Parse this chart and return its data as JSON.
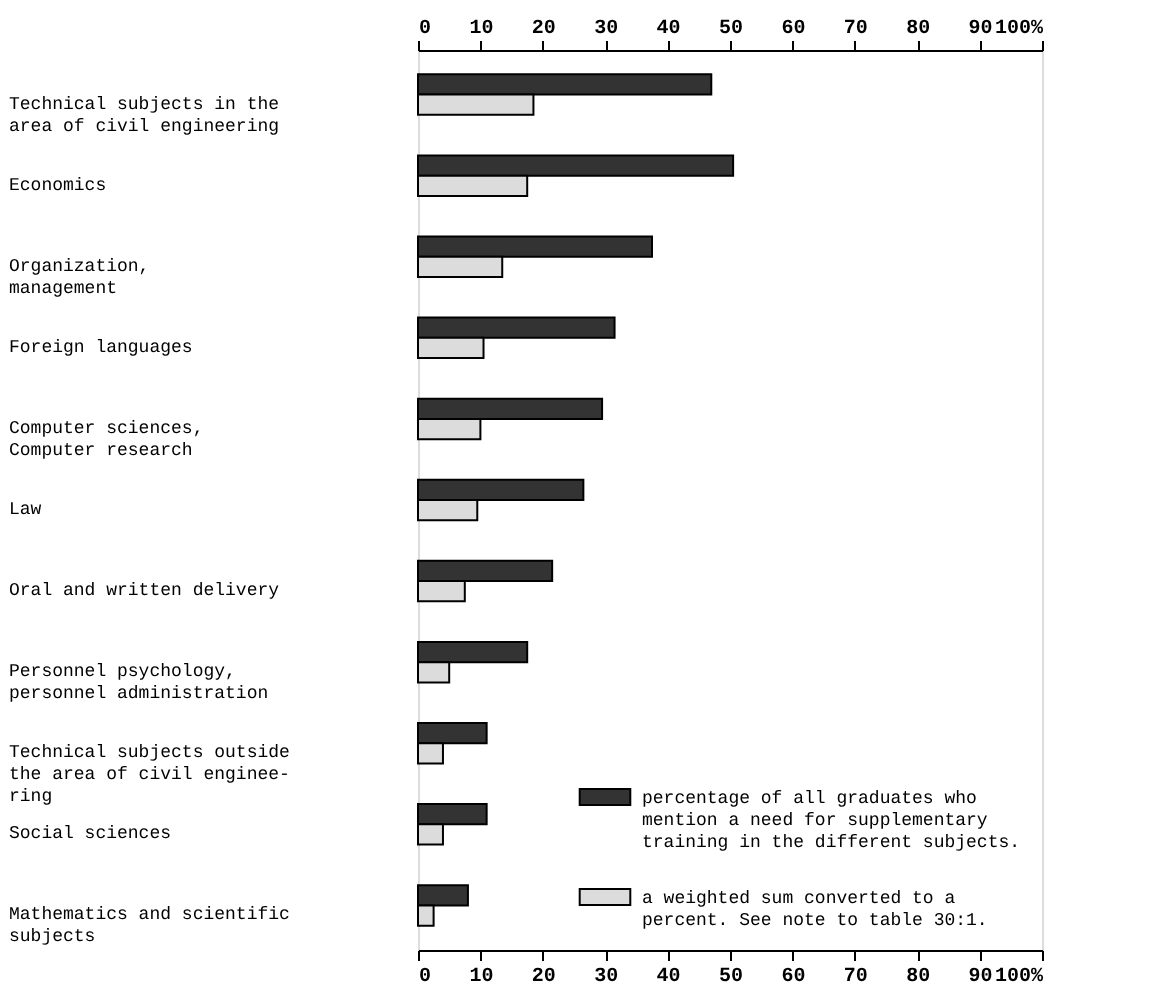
{
  "chart_data": {
    "type": "bar",
    "orientation": "horizontal",
    "categories": [
      "Technical subjects in the\narea of civil engineering",
      "Economics",
      "Organization,\nmanagement",
      "Foreign languages",
      "Computer sciences,\nComputer research",
      "Law",
      "Oral and written delivery",
      "Personnel psychology,\npersonnel administration",
      "Technical subjects outside\nthe area of civil enginee-\nring",
      "Social sciences",
      "Mathematics and scientific\nsubjects"
    ],
    "series": [
      {
        "name": "percentage of all graduates who\nmention a need for supplementary\ntraining in the different subjects.",
        "color": "#333333",
        "values": [
          47,
          50.5,
          37.5,
          31.5,
          29.5,
          26.5,
          21.5,
          17.5,
          11,
          11,
          8
        ]
      },
      {
        "name": "a weighted sum converted to a\npercent. See note to table 30:1.",
        "color": "#dcdcdc",
        "values": [
          18.5,
          17.5,
          13.5,
          10.5,
          10,
          9.5,
          7.5,
          5,
          4,
          4,
          2.5
        ]
      }
    ],
    "xlim": [
      0,
      100
    ],
    "xticks": [
      0,
      10,
      20,
      30,
      40,
      50,
      60,
      70,
      80,
      90,
      {
        "value": 100,
        "label": "100%"
      }
    ],
    "x2lim": [
      0,
      100
    ],
    "x2ticks": [
      0,
      10,
      20,
      30,
      40,
      50,
      60,
      70,
      80,
      90,
      {
        "value": 100,
        "label": "100%"
      }
    ],
    "grid": false,
    "legend": "bottom right"
  }
}
